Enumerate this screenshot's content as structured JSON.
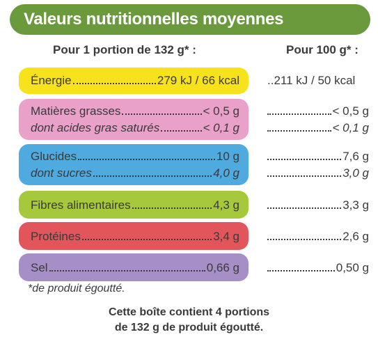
{
  "title": "Valeurs nutritionnelles moyennes",
  "columns": {
    "portion": "Pour 1 portion de 132 g* :",
    "per100": "Pour 100 g* :"
  },
  "colors": {
    "header": "#6a9a3c",
    "energie": "#f7e21b",
    "matieres": "#eaa1c9",
    "glucides": "#4eaadf",
    "fibres": "#a6c93b",
    "proteines": "#e2555a",
    "sel": "#a68fc6"
  },
  "rows": {
    "energie": {
      "label": "Énergie",
      "portion": "279 kJ / 66 kcal",
      "per100": "..211 kJ / 50 kcal"
    },
    "matieres": {
      "label": "Matières grasses",
      "portion": "< 0,5 g",
      "per100": "< 0,5 g"
    },
    "satures": {
      "label": "dont acides gras saturés",
      "portion": "< 0,1 g",
      "per100": "< 0,1 g"
    },
    "glucides": {
      "label": "Glucides",
      "portion": "10 g",
      "per100": "7,6 g"
    },
    "sucres": {
      "label": "dont sucres",
      "portion": "4,0 g",
      "per100": "3,0 g"
    },
    "fibres": {
      "label": "Fibres alimentaires",
      "portion": "4,3 g",
      "per100": "3,3 g"
    },
    "proteines": {
      "label": "Protéines",
      "portion": "3,4 g",
      "per100": "2,6 g"
    },
    "sel": {
      "label": "Sel",
      "portion": "0,66 g",
      "per100": "0,50 g"
    }
  },
  "footnote": "*de produit égoutté.",
  "summary": {
    "line1": "Cette boîte contient 4 portions",
    "line2": "de 132 g de produit égoutté."
  }
}
